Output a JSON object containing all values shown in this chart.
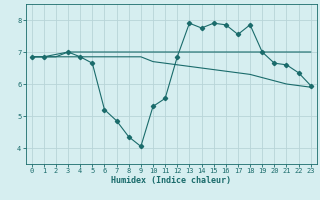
{
  "xlabel": "Humidex (Indice chaleur)",
  "bg_color": "#d6eef0",
  "grid_color": "#b8d4d8",
  "line_color": "#1a6b6b",
  "xlim": [
    -0.5,
    23.5
  ],
  "ylim": [
    3.5,
    8.5
  ],
  "yticks": [
    4,
    5,
    6,
    7,
    8
  ],
  "xticks": [
    0,
    1,
    2,
    3,
    4,
    5,
    6,
    7,
    8,
    9,
    10,
    11,
    12,
    13,
    14,
    15,
    16,
    17,
    18,
    19,
    20,
    21,
    22,
    23
  ],
  "line1_x": [
    0,
    1,
    2,
    3,
    4,
    5,
    6,
    7,
    8,
    9,
    10,
    11,
    12,
    13,
    14,
    15,
    16,
    17,
    18,
    19,
    20,
    21,
    22,
    23
  ],
  "line1_y": [
    6.85,
    6.85,
    6.85,
    7.0,
    7.0,
    7.0,
    7.0,
    7.0,
    7.0,
    7.0,
    7.0,
    7.0,
    7.0,
    7.0,
    7.0,
    7.0,
    7.0,
    7.0,
    7.0,
    7.0,
    7.0,
    7.0,
    7.0,
    7.0
  ],
  "line2_x": [
    0,
    1,
    2,
    3,
    4,
    5,
    6,
    7,
    8,
    9,
    10,
    11,
    12,
    13,
    14,
    15,
    16,
    17,
    18,
    19,
    20,
    21,
    22,
    23
  ],
  "line2_y": [
    6.85,
    6.85,
    6.85,
    6.85,
    6.85,
    6.85,
    6.85,
    6.85,
    6.85,
    6.85,
    6.7,
    6.65,
    6.6,
    6.55,
    6.5,
    6.45,
    6.4,
    6.35,
    6.3,
    6.2,
    6.1,
    6.0,
    5.95,
    5.9
  ],
  "line3_x": [
    0,
    1,
    3,
    4,
    5,
    6,
    7,
    8,
    9,
    10,
    11,
    12,
    13,
    14,
    15,
    16,
    17,
    18,
    19,
    20,
    21,
    22,
    23
  ],
  "line3_y": [
    6.85,
    6.85,
    7.0,
    6.85,
    6.65,
    5.2,
    4.85,
    4.35,
    4.05,
    5.3,
    5.55,
    6.85,
    7.9,
    7.75,
    7.9,
    7.85,
    7.55,
    7.85,
    7.0,
    6.65,
    6.6,
    6.35,
    5.95
  ]
}
